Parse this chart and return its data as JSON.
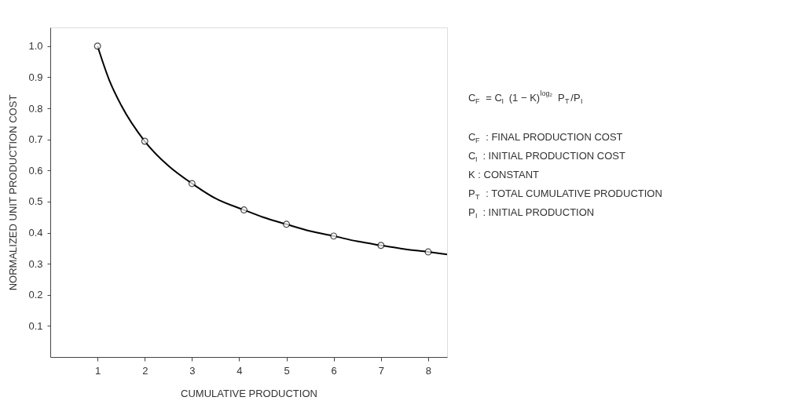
{
  "chart_data": {
    "type": "line",
    "xlabel": "CUMULATIVE PRODUCTION",
    "ylabel": "NORMALIZED UNIT PRODUCTION COST",
    "xlim": [
      0,
      8.4
    ],
    "xticks": [
      1,
      2,
      3,
      4,
      5,
      6,
      7,
      8
    ],
    "ylim": [
      0,
      1.06
    ],
    "yticks": [
      0.1,
      0.2,
      0.3,
      0.4,
      0.5,
      0.6,
      0.7,
      0.8,
      0.9,
      {
        "value": 1.0,
        "label": "1.0"
      }
    ],
    "grid": false,
    "series": [
      {
        "color": "#000000",
        "marker": "none",
        "x": [
          1,
          1.25,
          1.5,
          2,
          2.5,
          3,
          3.5,
          4.1,
          4.5,
          5,
          5.5,
          6,
          6.5,
          7,
          7.5,
          8,
          8.4
        ],
        "values": [
          1.0,
          0.89,
          0.81,
          0.694,
          0.615,
          0.558,
          0.51,
          0.473,
          0.45,
          0.427,
          0.405,
          0.389,
          0.372,
          0.359,
          0.347,
          0.338,
          0.33
        ]
      },
      {
        "type": "scatter",
        "color": "#000000",
        "marker": "circle",
        "x": [
          1,
          2,
          3,
          4.1,
          5,
          6,
          7,
          8
        ],
        "values": [
          1.0,
          0.694,
          0.558,
          0.473,
          0.427,
          0.389,
          0.359,
          0.338
        ]
      }
    ],
    "annotations": [
      "C$_{F}$ = C$_{I}$ (1 − K)$^{log₂}$ P$_{T}$/P$_{I}$",
      "C$_{F}$ : FINAL PRODUCTION COST",
      "C$_{I}$ : INITIAL PRODUCTION COST",
      "K : CONSTANT",
      "P$_{T}$ : TOTAL CUMULATIVE PRODUCTION",
      "P$_{I}$ : INITIAL PRODUCTION"
    ]
  }
}
